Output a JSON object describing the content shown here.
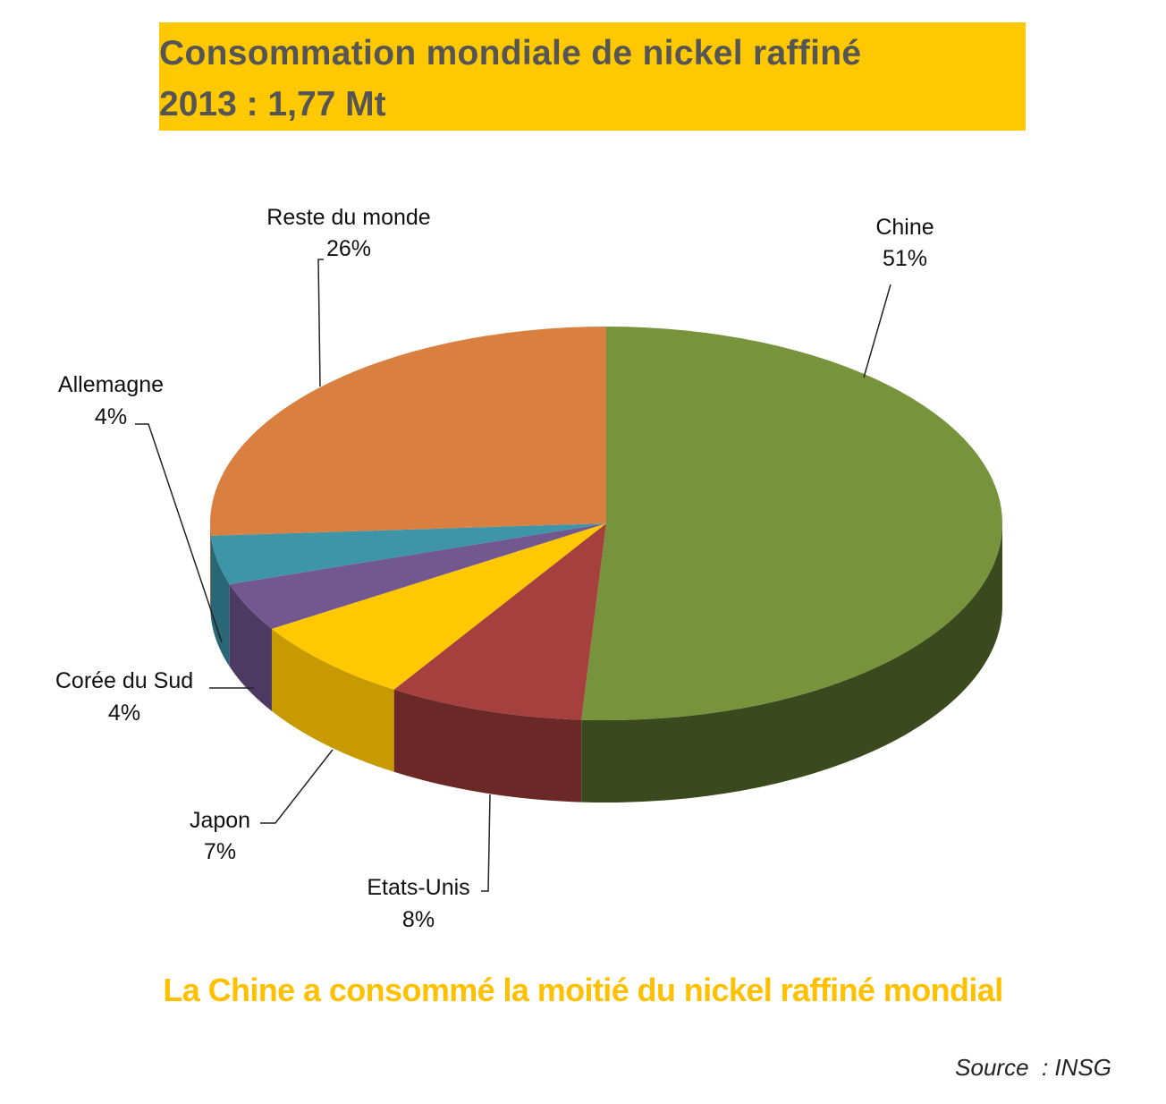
{
  "title": {
    "line1": "Consommation mondiale de nickel raffiné",
    "line2": "2013 : 1,77 Mt"
  },
  "chart_data": {
    "type": "pie",
    "style": "3d",
    "unit": "%",
    "slices": [
      {
        "label": "Chine",
        "value": 51,
        "display": "51%",
        "color": "#77933c",
        "side": "#3b4a1e"
      },
      {
        "label": "Etats-Unis",
        "value": 8,
        "display": "8%",
        "color": "#a5403e",
        "side": "#6a2826"
      },
      {
        "label": "Japon",
        "value": 7,
        "display": "7%",
        "color": "#ffc800",
        "side": "#c79a00"
      },
      {
        "label": "Corée du Sud",
        "value": 4,
        "display": "4%",
        "color": "#72588f",
        "side": "#4c3a62"
      },
      {
        "label": "Allemagne",
        "value": 4,
        "display": "4%",
        "color": "#3f95a8",
        "side": "#296676"
      },
      {
        "label": "Reste du monde",
        "value": 26,
        "display": "26%",
        "color": "#d98040",
        "side": "#9a5a2c"
      }
    ]
  },
  "caption": "La Chine a consommé la moitié du nickel raffiné mondial",
  "source": "Source  : INSG"
}
